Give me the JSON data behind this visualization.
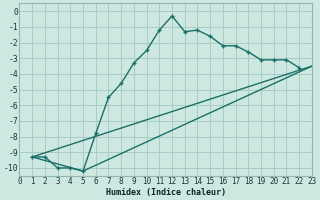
{
  "xlabel": "Humidex (Indice chaleur)",
  "bg_color": "#cce8e0",
  "grid_color": "#a8ccc5",
  "line_color": "#1a7068",
  "spine_color": "#90b8b0",
  "xlim": [
    0,
    23
  ],
  "ylim": [
    -10.5,
    0.5
  ],
  "xticks": [
    0,
    1,
    2,
    3,
    4,
    5,
    6,
    7,
    8,
    9,
    10,
    11,
    12,
    13,
    14,
    15,
    16,
    17,
    18,
    19,
    20,
    21,
    22,
    23
  ],
  "yticks": [
    0,
    -1,
    -2,
    -3,
    -4,
    -5,
    -6,
    -7,
    -8,
    -9,
    -10
  ],
  "line1_x": [
    1,
    2,
    3,
    4,
    5,
    6,
    7,
    8,
    9,
    10,
    11,
    12,
    13,
    14,
    15,
    16,
    17,
    18,
    19,
    20,
    21,
    22
  ],
  "line1_y": [
    -9.3,
    -9.3,
    -10.0,
    -10.0,
    -10.2,
    -7.8,
    -5.5,
    -4.6,
    -3.3,
    -2.5,
    -1.2,
    -0.3,
    -1.3,
    -1.2,
    -1.6,
    -2.2,
    -2.2,
    -2.6,
    -3.1,
    -3.1,
    -3.1,
    -3.6
  ],
  "line2_x": [
    1,
    5,
    23
  ],
  "line2_y": [
    -9.3,
    -10.2,
    -3.5
  ],
  "line3_x": [
    1,
    23
  ],
  "line3_y": [
    -9.3,
    -3.5
  ],
  "xlabel_fontsize": 6.0,
  "tick_fontsize": 5.5,
  "linewidth": 1.0,
  "marker_size": 3.5
}
